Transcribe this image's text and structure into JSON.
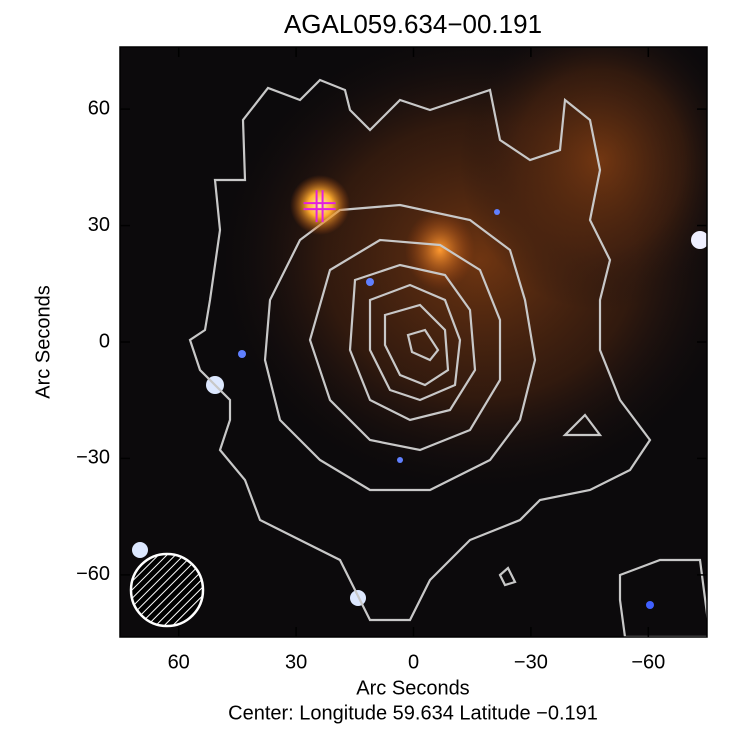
{
  "chart_data": {
    "type": "image",
    "title": "AGAL059.634−00.191",
    "xlabel": "Arc Seconds",
    "ylabel": "Arc Seconds",
    "footer": "Center:  Longitude 59.634 Latitude −0.191",
    "xlim": [
      75,
      -75
    ],
    "ylim": [
      -76,
      76
    ],
    "xticks": [
      60,
      30,
      0,
      {
        "value": -30,
        "label": "−30"
      },
      {
        "value": -60,
        "label": "−60"
      }
    ],
    "yticks": [
      {
        "value": -60,
        "label": "−60"
      },
      {
        "value": -30,
        "label": "−30"
      },
      0,
      30,
      60
    ],
    "marker": {
      "x": 24,
      "y": 35,
      "color": "#e020e0"
    }
  }
}
